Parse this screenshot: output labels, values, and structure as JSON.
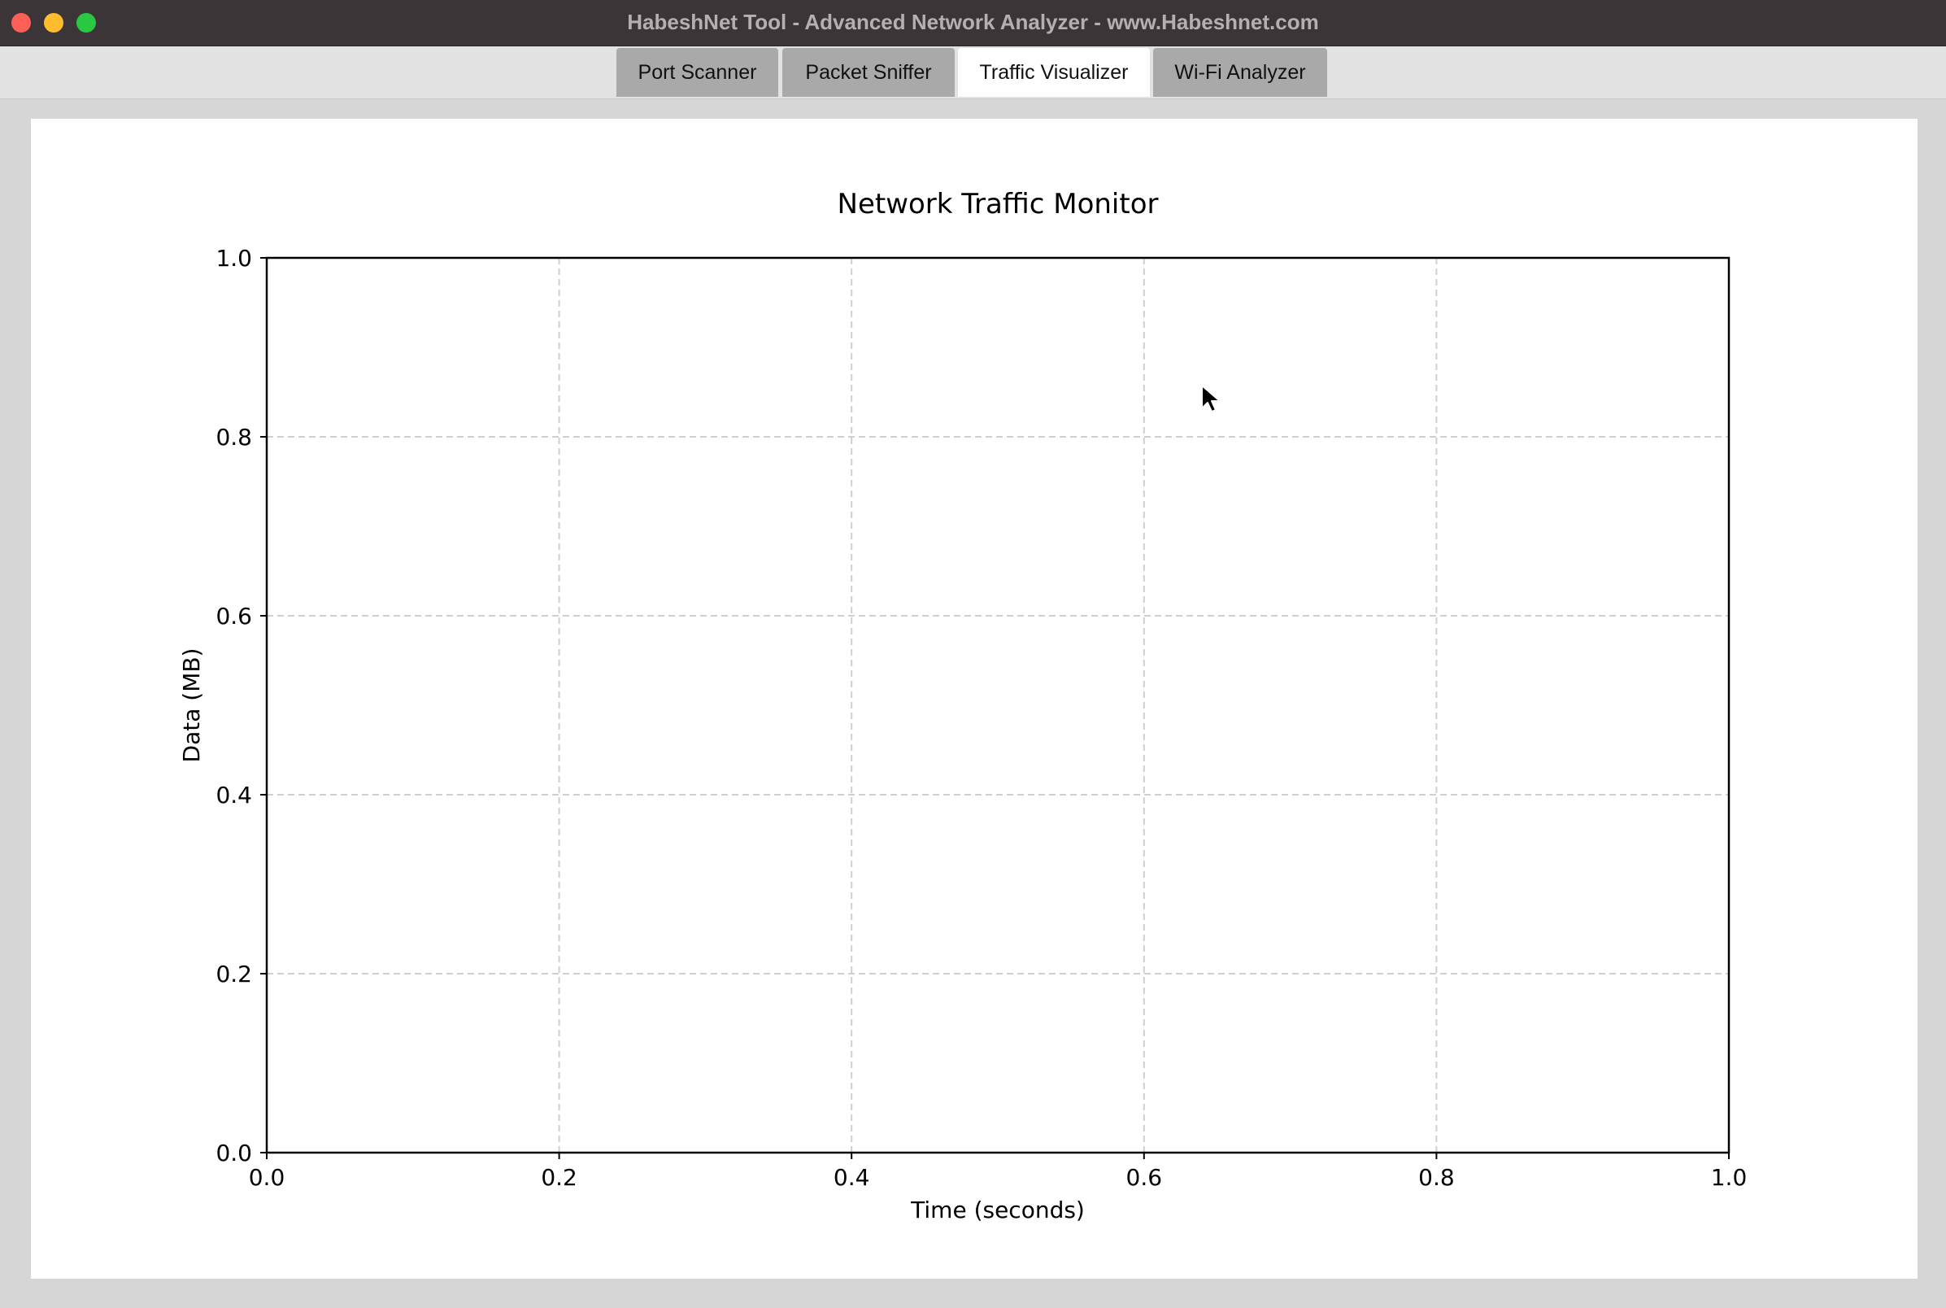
{
  "window": {
    "title": "HabeshNet Tool - Advanced Network Analyzer - www.Habeshnet.com"
  },
  "tabs": [
    {
      "label": "Port Scanner",
      "active": false
    },
    {
      "label": "Packet Sniffer",
      "active": false
    },
    {
      "label": "Traffic Visualizer",
      "active": true
    },
    {
      "label": "Wi-Fi Analyzer",
      "active": false
    }
  ],
  "colors": {
    "titlebar": "#3c3537",
    "tab_inactive": "#a9a9a9",
    "tab_active": "#ffffff",
    "close_button": "#fe5f57",
    "minimize_button": "#febc2e",
    "zoom_button": "#28c840"
  },
  "chart_data": {
    "type": "line",
    "title": "Network Traffic Monitor",
    "xlabel": "Time (seconds)",
    "ylabel": "Data (MB)",
    "xlim": [
      0.0,
      1.0
    ],
    "ylim": [
      0.0,
      1.0
    ],
    "xticks": [
      "0.0",
      "0.2",
      "0.4",
      "0.6",
      "0.8",
      "1.0"
    ],
    "yticks": [
      "0.0",
      "0.2",
      "0.4",
      "0.6",
      "0.8",
      "1.0"
    ],
    "grid": true,
    "series": []
  }
}
